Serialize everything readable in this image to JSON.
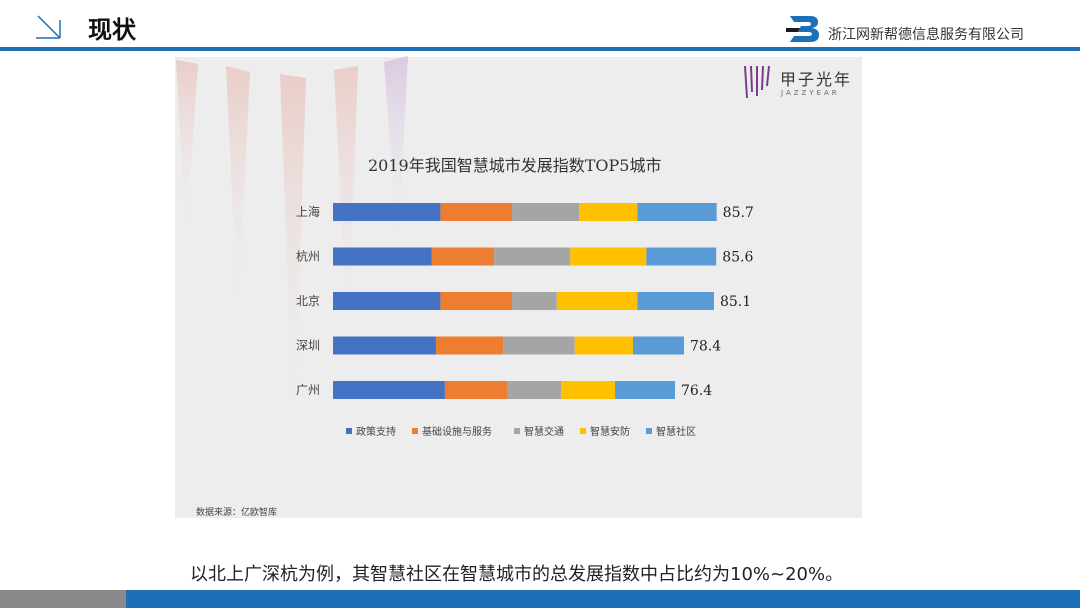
{
  "header": {
    "title": "现状",
    "company": "浙江网新帮德信息服务有限公司"
  },
  "brand": {
    "name": "甲子光年",
    "sub": "JAZZYEAR"
  },
  "source": "数据来源：亿欧智库",
  "caption": "以北上广深杭为例，其智慧社区在智慧城市的总发展指数中占比约为10%~20%。",
  "colors": {
    "accent": "#1d6fb8",
    "footer_gray": "#8a8a8a",
    "series": [
      "#4472c4",
      "#ed7d31",
      "#a5a5a5",
      "#ffc000",
      "#5b9bd5"
    ]
  },
  "chart_data": {
    "type": "bar",
    "orientation": "horizontal",
    "stacked": true,
    "title": "2019年我国智慧城市发展指数TOP5城市",
    "categories": [
      "上海",
      "杭州",
      "北京",
      "深圳",
      "广州"
    ],
    "totals": [
      85.7,
      85.6,
      85.1,
      78.4,
      76.4
    ],
    "total_labels": [
      "85.7",
      "85.6",
      "85.1",
      "78.4",
      "76.4"
    ],
    "series": [
      {
        "name": "政策支持",
        "values": [
          24.0,
          22.0,
          24.0,
          23.0,
          25.0
        ]
      },
      {
        "name": "基础设施与服务",
        "values": [
          16.0,
          14.0,
          16.0,
          15.0,
          14.0
        ]
      },
      {
        "name": "智慧交通",
        "values": [
          15.0,
          17.0,
          10.0,
          16.0,
          12.0
        ]
      },
      {
        "name": "智慧安防",
        "values": [
          13.0,
          17.0,
          18.0,
          13.0,
          12.0
        ]
      },
      {
        "name": "智慧社区",
        "values": [
          17.7,
          15.6,
          17.1,
          11.4,
          13.4
        ]
      }
    ],
    "xlim": [
      0,
      86
    ],
    "legend_position": "bottom"
  }
}
